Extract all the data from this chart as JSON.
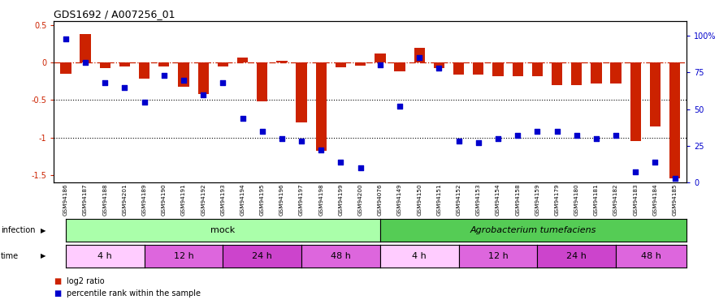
{
  "title": "GDS1692 / A007256_01",
  "samples": [
    "GSM94186",
    "GSM94187",
    "GSM94188",
    "GSM94201",
    "GSM94189",
    "GSM94190",
    "GSM94191",
    "GSM94192",
    "GSM94193",
    "GSM94194",
    "GSM94195",
    "GSM94196",
    "GSM94197",
    "GSM94198",
    "GSM94199",
    "GSM94200",
    "GSM94076",
    "GSM94149",
    "GSM94150",
    "GSM94151",
    "GSM94152",
    "GSM94153",
    "GSM94154",
    "GSM94158",
    "GSM94159",
    "GSM94179",
    "GSM94180",
    "GSM94181",
    "GSM94182",
    "GSM94183",
    "GSM94184",
    "GSM94185"
  ],
  "log2_ratio": [
    -0.15,
    0.38,
    -0.07,
    -0.05,
    -0.22,
    -0.05,
    -0.32,
    -0.42,
    -0.05,
    0.07,
    -0.52,
    0.02,
    -0.8,
    -1.18,
    -0.06,
    -0.04,
    0.12,
    -0.12,
    0.2,
    -0.08,
    -0.16,
    -0.16,
    -0.18,
    -0.18,
    -0.18,
    -0.3,
    -0.3,
    -0.28,
    -0.28,
    -1.05,
    -0.85,
    -1.55
  ],
  "percentile_rank": [
    98,
    82,
    68,
    65,
    55,
    73,
    70,
    60,
    68,
    44,
    35,
    30,
    28,
    22,
    14,
    10,
    80,
    52,
    85,
    78,
    28,
    27,
    30,
    32,
    35,
    35,
    32,
    30,
    32,
    7,
    14,
    3
  ],
  "time_groups": [
    {
      "label": "4 h",
      "start": 0,
      "end": 4,
      "color": "#ffaaff"
    },
    {
      "label": "12 h",
      "start": 4,
      "end": 8,
      "color": "#dd66dd"
    },
    {
      "label": "24 h",
      "start": 8,
      "end": 12,
      "color": "#cc44cc"
    },
    {
      "label": "48 h",
      "start": 12,
      "end": 16,
      "color": "#dd66dd"
    },
    {
      "label": "4 h",
      "start": 16,
      "end": 20,
      "color": "#ffaaff"
    },
    {
      "label": "12 h",
      "start": 20,
      "end": 24,
      "color": "#dd66dd"
    },
    {
      "label": "24 h",
      "start": 24,
      "end": 28,
      "color": "#cc44cc"
    },
    {
      "label": "48 h",
      "start": 28,
      "end": 32,
      "color": "#dd66dd"
    }
  ],
  "bar_color": "#cc2200",
  "dot_color": "#0000cc",
  "ylim_left": [
    -1.6,
    0.55
  ],
  "ylim_right": [
    0,
    110
  ],
  "yticks_left": [
    -1.5,
    -1.0,
    -0.5,
    0.0,
    0.5
  ],
  "ytick_labels_left": [
    "-1.5",
    "-1",
    "-0.5",
    "0",
    "0.5"
  ],
  "yticks_right": [
    0,
    25,
    50,
    75,
    100
  ],
  "ytick_labels_right": [
    "0",
    "25",
    "50",
    "75",
    "100%"
  ],
  "hline_y": 0.0,
  "dotted_lines": [
    -0.5,
    -1.0
  ],
  "green_light": "#aaffaa",
  "green_dark": "#55cc55",
  "xtick_bg": "#cccccc",
  "infection_mock_label": "mock",
  "infection_agro_label": "Agrobacterium tumefaciens",
  "legend_red_label": "log2 ratio",
  "legend_blue_label": "percentile rank within the sample"
}
